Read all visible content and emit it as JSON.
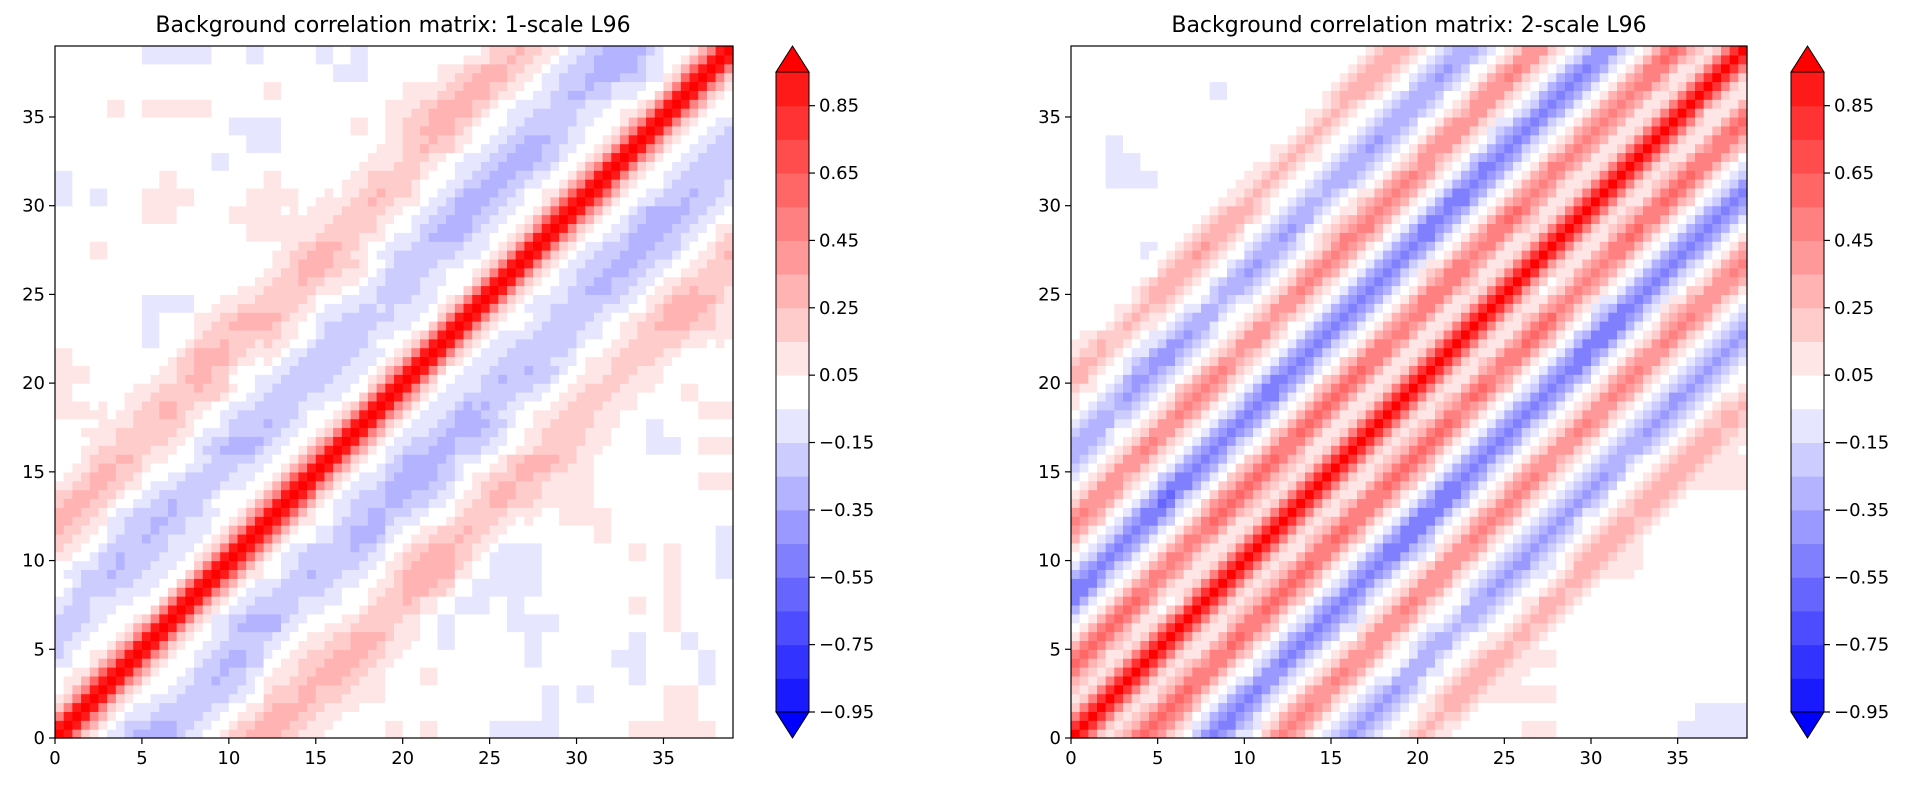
{
  "chart_data": [
    {
      "type": "heatmap",
      "subtype": "filled-contour",
      "title": "Background correlation matrix: 1-scale L96",
      "xlabel": "",
      "ylabel": "",
      "xlim": [
        0,
        39
      ],
      "ylim": [
        0,
        39
      ],
      "xticks": [
        0,
        5,
        10,
        15,
        20,
        25,
        30,
        35
      ],
      "yticks": [
        0,
        5,
        10,
        15,
        20,
        25,
        30,
        35
      ],
      "grid": false,
      "colormap": "bwr",
      "structure": {
        "diagonal_value": 1.0,
        "band_offsets": [
          -12,
          -6,
          6,
          12
        ],
        "band_values": [
          0.25,
          -0.25,
          -0.25,
          0.25
        ],
        "band_width": 1.6,
        "diagonal_width": 0.9,
        "noise_amplitude": 0.22
      },
      "colorbar": {
        "levels": [
          -0.95,
          -0.85,
          -0.75,
          -0.65,
          -0.55,
          -0.45,
          -0.35,
          -0.25,
          -0.15,
          -0.05,
          0.05,
          0.15,
          0.25,
          0.35,
          0.45,
          0.55,
          0.65,
          0.75,
          0.85,
          0.95
        ],
        "tick_values": [
          -0.95,
          -0.75,
          -0.55,
          -0.35,
          -0.15,
          0.05,
          0.25,
          0.45,
          0.65,
          0.85
        ],
        "tick_labels": [
          "−0.95",
          "−0.75",
          "−0.55",
          "−0.35",
          "−0.15",
          "0.05",
          "0.25",
          "0.45",
          "0.65",
          "0.85"
        ],
        "extend": "both"
      }
    },
    {
      "type": "heatmap",
      "subtype": "filled-contour",
      "title": "Background correlation matrix: 2-scale L96",
      "xlabel": "",
      "ylabel": "",
      "xlim": [
        0,
        39
      ],
      "ylim": [
        0,
        39
      ],
      "xticks": [
        0,
        5,
        10,
        15,
        20,
        25,
        30,
        35
      ],
      "yticks": [
        0,
        5,
        10,
        15,
        20,
        25,
        30,
        35
      ],
      "grid": false,
      "colormap": "bwr",
      "structure": {
        "diagonal_value": 1.0,
        "band_offsets": [
          -20,
          -16,
          -12,
          -8,
          -4,
          4,
          8,
          12,
          16,
          20
        ],
        "band_values": [
          0.3,
          -0.35,
          0.45,
          -0.5,
          0.55,
          0.55,
          -0.5,
          0.45,
          -0.35,
          0.3
        ],
        "band_width": 0.9,
        "diagonal_width": 0.8,
        "noise_amplitude": 0.15
      },
      "colorbar": {
        "levels": [
          -0.95,
          -0.85,
          -0.75,
          -0.65,
          -0.55,
          -0.45,
          -0.35,
          -0.25,
          -0.15,
          -0.05,
          0.05,
          0.15,
          0.25,
          0.35,
          0.45,
          0.55,
          0.65,
          0.75,
          0.85,
          0.95
        ],
        "tick_values": [
          -0.95,
          -0.75,
          -0.55,
          -0.35,
          -0.15,
          0.05,
          0.25,
          0.45,
          0.65,
          0.85
        ],
        "tick_labels": [
          "−0.95",
          "−0.75",
          "−0.55",
          "−0.35",
          "−0.15",
          "0.05",
          "0.25",
          "0.45",
          "0.65",
          "0.85"
        ],
        "extend": "both"
      }
    }
  ],
  "colors": {
    "negative_extreme": "#0000ff",
    "neutral": "#ffffff",
    "positive_extreme": "#ff0000",
    "axis": "#000000"
  }
}
